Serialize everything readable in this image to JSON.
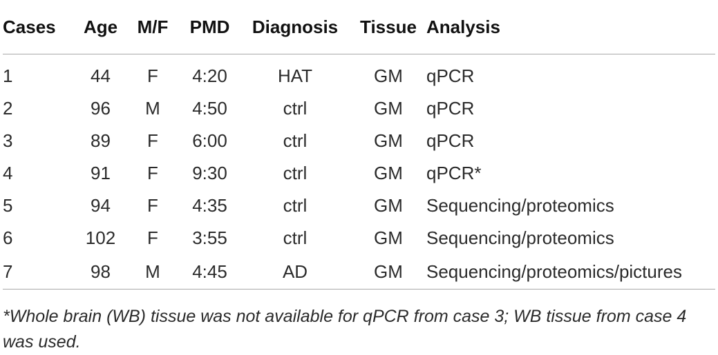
{
  "table": {
    "headers": [
      "Cases",
      "Age",
      "M/F",
      "PMD",
      "Diagnosis",
      "Tissue",
      "Analysis"
    ],
    "rows": [
      [
        "1",
        "44",
        "F",
        "4:20",
        "HAT",
        "GM",
        "qPCR"
      ],
      [
        "2",
        "96",
        "M",
        "4:50",
        "ctrl",
        "GM",
        "qPCR"
      ],
      [
        "3",
        "89",
        "F",
        "6:00",
        "ctrl",
        "GM",
        "qPCR"
      ],
      [
        "4",
        "91",
        "F",
        "9:30",
        "ctrl",
        "GM",
        "qPCR*"
      ],
      [
        "5",
        "94",
        "F",
        "4:35",
        "ctrl",
        "GM",
        "Sequencing/proteomics"
      ],
      [
        "6",
        "102",
        "F",
        "3:55",
        "ctrl",
        "GM",
        "Sequencing/proteomics"
      ],
      [
        "7",
        "98",
        "M",
        "4:45",
        "AD",
        "GM",
        "Sequencing/proteomics/pictures"
      ]
    ]
  },
  "footnote": "*Whole brain (WB) tissue was not available for qPCR from case 3; WB tissue from case 4 was used."
}
